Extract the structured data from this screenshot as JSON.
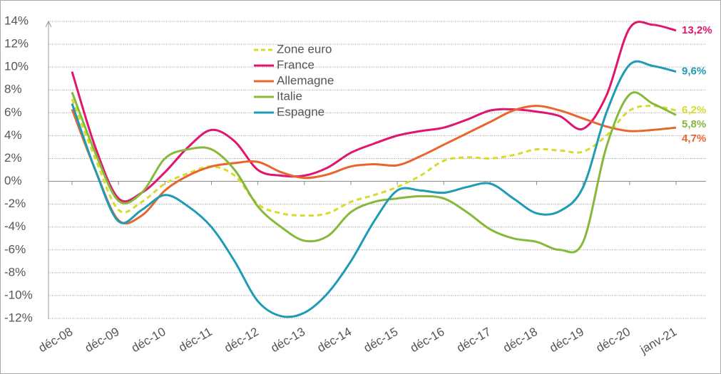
{
  "chart_data": {
    "type": "line",
    "categories": [
      "déc-08",
      null,
      "déc-09",
      null,
      "déc-10",
      null,
      "déc-11",
      null,
      "déc-12",
      null,
      "déc-13",
      null,
      "déc-14",
      null,
      "déc-15",
      null,
      "déc-16",
      null,
      "déc-17",
      null,
      "déc-18",
      null,
      "déc-19",
      null,
      "déc-20",
      null,
      "janv-21"
    ],
    "series": [
      {
        "name": "Zone euro",
        "color": "#d6dc2c",
        "dashed": true,
        "values": [
          7.2,
          2,
          -2.5,
          -1.8,
          -0.2,
          0.7,
          1.3,
          0.5,
          -2,
          -2.8,
          -3,
          -2.8,
          -1.8,
          -1.2,
          -0.5,
          0.5,
          1.8,
          2.1,
          2,
          2.3,
          2.8,
          2.7,
          2.6,
          4,
          6.2,
          6.6,
          6.2
        ],
        "value_labels": [
          null,
          null,
          null,
          null,
          null,
          null,
          null,
          null,
          null,
          null,
          null,
          null,
          null,
          null,
          null,
          null,
          null,
          null,
          null,
          null,
          null,
          null,
          null,
          null,
          null,
          null,
          "6,2%"
        ]
      },
      {
        "name": "France",
        "color": "#e0156e",
        "values": [
          9.6,
          3,
          -1.5,
          -1,
          0.8,
          3,
          4.5,
          3.5,
          1,
          0.5,
          0.5,
          1.2,
          2.5,
          3.3,
          4,
          4.4,
          4.7,
          5.4,
          6.2,
          6.3,
          6.1,
          5.7,
          4.6,
          7.5,
          13.4,
          13.7,
          13.2
        ],
        "value_labels": [
          null,
          null,
          null,
          null,
          null,
          null,
          null,
          null,
          null,
          null,
          null,
          null,
          null,
          null,
          null,
          null,
          null,
          null,
          null,
          null,
          null,
          null,
          null,
          null,
          null,
          null,
          "13,2%"
        ]
      },
      {
        "name": "Allemagne",
        "color": "#e8662e",
        "values": [
          6.3,
          1,
          -3.4,
          -3,
          -0.8,
          0.5,
          1.3,
          1.6,
          1.7,
          0.8,
          0.3,
          0.6,
          1.3,
          1.5,
          1.4,
          2.2,
          3.2,
          4.2,
          5.2,
          6.2,
          6.6,
          6.2,
          5.5,
          4.8,
          4.4,
          4.5,
          4.7
        ],
        "value_labels": [
          null,
          null,
          null,
          null,
          null,
          null,
          null,
          null,
          null,
          null,
          null,
          null,
          null,
          null,
          null,
          null,
          null,
          null,
          null,
          null,
          null,
          null,
          null,
          null,
          null,
          null,
          "4,7%"
        ]
      },
      {
        "name": "Italie",
        "color": "#86b83a",
        "values": [
          7.8,
          2.5,
          -1.7,
          -1,
          2,
          2.8,
          2.8,
          1,
          -2.2,
          -4,
          -5.2,
          -4.8,
          -2.7,
          -1.8,
          -1.5,
          -1.3,
          -1.5,
          -2.7,
          -4.2,
          -5,
          -5.3,
          -6,
          -5.3,
          3,
          7.6,
          6.8,
          5.8
        ],
        "value_labels": [
          null,
          null,
          null,
          null,
          null,
          null,
          null,
          null,
          null,
          null,
          null,
          null,
          null,
          null,
          null,
          null,
          null,
          null,
          null,
          null,
          null,
          null,
          null,
          null,
          null,
          null,
          "5,8%"
        ]
      },
      {
        "name": "Espagne",
        "color": "#1e9bb5",
        "values": [
          6.8,
          1,
          -3.5,
          -2.5,
          -1.2,
          -2.2,
          -4,
          -7,
          -10.5,
          -11.8,
          -11.5,
          -9.8,
          -7,
          -3.5,
          -0.8,
          -0.8,
          -1,
          -0.5,
          -0.2,
          -1.5,
          -2.8,
          -2.6,
          -0.5,
          6,
          10.2,
          10.1,
          9.6
        ],
        "value_labels": [
          null,
          null,
          null,
          null,
          null,
          null,
          null,
          null,
          null,
          null,
          null,
          null,
          null,
          null,
          null,
          null,
          null,
          null,
          null,
          null,
          null,
          null,
          null,
          null,
          null,
          null,
          "9,6%"
        ]
      }
    ],
    "ylim": [
      -12,
      14
    ],
    "yticks": [
      {
        "value": 14,
        "label": "14%"
      },
      {
        "value": 12,
        "label": "12%"
      },
      {
        "value": 10,
        "label": "10%"
      },
      {
        "value": 8,
        "label": "8%"
      },
      {
        "value": 6,
        "label": "6%"
      },
      {
        "value": 4,
        "label": "4%"
      },
      {
        "value": 2,
        "label": "2%"
      },
      {
        "value": 0,
        "label": "0%"
      },
      {
        "value": -2,
        "label": "-2%"
      },
      {
        "value": -4,
        "label": "-4%"
      },
      {
        "value": -6,
        "label": "-6%"
      },
      {
        "value": -8,
        "label": "-8%"
      },
      {
        "value": -10,
        "label": "-10%"
      },
      {
        "value": -12,
        "label": "-12%"
      }
    ],
    "grid": true,
    "legend": "top-left"
  }
}
